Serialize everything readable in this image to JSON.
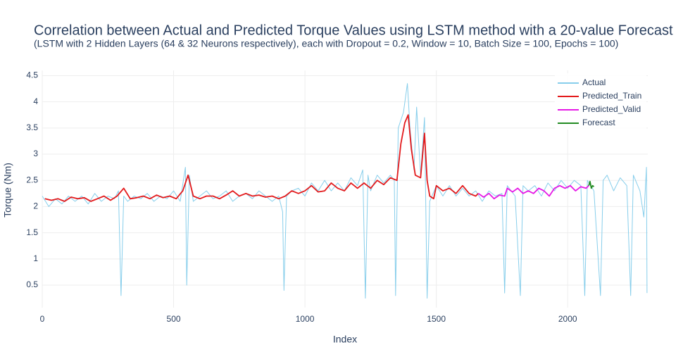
{
  "chart_data": {
    "type": "line",
    "title": "Correlation between Actual and Predicted Torque Values using LSTM method with a 20-value Forecast",
    "subtitle": "(LSTM with 2 Hidden Layers (64 & 32 Neurons respectively), each with Dropout = 0.2, Window = 10, Batch Size = 100, Epochs = 100)",
    "x_label": "Index",
    "y_label": "Torque (Nm)",
    "xlim": [
      0,
      2305
    ],
    "ylim": [
      0.07,
      4.6
    ],
    "xticks": [
      0,
      500,
      1000,
      1500,
      2000
    ],
    "yticks": [
      0.5,
      1,
      1.5,
      2,
      2.5,
      3,
      3.5,
      4,
      4.5
    ],
    "grid": true,
    "legend": "top-right",
    "series": [
      {
        "name": "Actual",
        "color": "#87ceeb",
        "x": [
          0,
          25,
          50,
          75,
          100,
          125,
          150,
          175,
          200,
          225,
          250,
          275,
          290,
          300,
          310,
          325,
          350,
          375,
          400,
          425,
          450,
          475,
          500,
          525,
          545,
          550,
          560,
          575,
          600,
          625,
          650,
          675,
          700,
          725,
          750,
          775,
          800,
          825,
          850,
          875,
          900,
          915,
          920,
          930,
          950,
          975,
          1000,
          1025,
          1050,
          1075,
          1100,
          1125,
          1150,
          1175,
          1200,
          1220,
          1230,
          1240,
          1250,
          1275,
          1300,
          1325,
          1340,
          1345,
          1355,
          1375,
          1390,
          1400,
          1415,
          1425,
          1440,
          1455,
          1465,
          1475,
          1500,
          1525,
          1550,
          1575,
          1600,
          1625,
          1650,
          1675,
          1700,
          1725,
          1750,
          1760,
          1770,
          1800,
          1820,
          1830,
          1850,
          1875,
          1900,
          1925,
          1950,
          1975,
          2000,
          2025,
          2050,
          2065,
          2075,
          2100,
          2125,
          2135,
          2150,
          2175,
          2200,
          2225,
          2240,
          2250,
          2275,
          2290,
          2300,
          2302
        ],
        "values": [
          2.2,
          2.0,
          2.15,
          2.05,
          2.2,
          2.1,
          2.2,
          2.05,
          2.25,
          2.1,
          2.2,
          2.15,
          2.3,
          0.3,
          2.2,
          2.1,
          2.2,
          2.15,
          2.25,
          2.1,
          2.2,
          2.15,
          2.3,
          2.1,
          2.75,
          0.5,
          2.6,
          2.1,
          2.2,
          2.3,
          2.15,
          2.2,
          2.3,
          2.1,
          2.2,
          2.25,
          2.15,
          2.3,
          2.2,
          2.1,
          2.2,
          1.9,
          0.4,
          2.2,
          2.3,
          2.35,
          2.2,
          2.45,
          2.3,
          2.5,
          2.3,
          2.45,
          2.3,
          2.55,
          2.4,
          2.7,
          0.25,
          2.6,
          2.3,
          2.6,
          2.45,
          2.6,
          2.5,
          0.3,
          3.5,
          3.8,
          4.35,
          3.5,
          2.7,
          3.9,
          2.6,
          3.7,
          0.25,
          2.1,
          2.4,
          2.2,
          2.4,
          2.2,
          2.35,
          2.2,
          2.3,
          2.1,
          2.3,
          2.2,
          2.25,
          0.35,
          2.4,
          2.2,
          0.3,
          2.4,
          2.3,
          2.4,
          2.2,
          2.45,
          2.3,
          2.5,
          2.35,
          2.5,
          2.4,
          0.3,
          2.5,
          2.3,
          0.3,
          2.5,
          2.6,
          2.3,
          2.55,
          2.4,
          0.3,
          2.6,
          2.3,
          1.8,
          2.75,
          0.35
        ]
      },
      {
        "name": "Predicted_Train",
        "color": "#e31a1c",
        "x": [
          10,
          35,
          60,
          85,
          110,
          135,
          160,
          185,
          210,
          235,
          260,
          285,
          310,
          335,
          360,
          385,
          410,
          435,
          460,
          485,
          510,
          535,
          555,
          575,
          600,
          625,
          650,
          675,
          700,
          725,
          750,
          775,
          800,
          825,
          850,
          875,
          900,
          925,
          950,
          975,
          1000,
          1025,
          1050,
          1075,
          1100,
          1125,
          1150,
          1175,
          1200,
          1225,
          1250,
          1275,
          1300,
          1325,
          1350,
          1365,
          1380,
          1393,
          1405,
          1420,
          1440,
          1455,
          1465,
          1475,
          1490,
          1500,
          1525,
          1550,
          1575,
          1600,
          1625,
          1650,
          1660
        ],
        "values": [
          2.15,
          2.12,
          2.15,
          2.1,
          2.18,
          2.15,
          2.17,
          2.1,
          2.15,
          2.2,
          2.12,
          2.2,
          2.35,
          2.15,
          2.17,
          2.2,
          2.15,
          2.22,
          2.17,
          2.2,
          2.15,
          2.3,
          2.6,
          2.2,
          2.15,
          2.2,
          2.2,
          2.15,
          2.22,
          2.3,
          2.2,
          2.25,
          2.2,
          2.22,
          2.18,
          2.2,
          2.15,
          2.2,
          2.3,
          2.25,
          2.3,
          2.4,
          2.28,
          2.3,
          2.45,
          2.35,
          2.3,
          2.45,
          2.35,
          2.45,
          2.35,
          2.5,
          2.42,
          2.55,
          2.5,
          3.2,
          3.6,
          3.75,
          3.1,
          2.6,
          2.55,
          3.4,
          2.5,
          2.2,
          2.15,
          2.4,
          2.3,
          2.35,
          2.25,
          2.4,
          2.25,
          2.2,
          2.25
        ]
      },
      {
        "name": "Predicted_Valid",
        "color": "#e619e6",
        "x": [
          1660,
          1680,
          1700,
          1720,
          1740,
          1760,
          1770,
          1790,
          1810,
          1830,
          1850,
          1870,
          1890,
          1910,
          1930,
          1950,
          1970,
          1990,
          2010,
          2030,
          2050,
          2070,
          2080
        ],
        "values": [
          2.25,
          2.18,
          2.25,
          2.15,
          2.22,
          2.2,
          2.35,
          2.28,
          2.35,
          2.25,
          2.3,
          2.25,
          2.35,
          2.3,
          2.2,
          2.35,
          2.4,
          2.35,
          2.4,
          2.3,
          2.38,
          2.35,
          2.4
        ]
      },
      {
        "name": "Forecast",
        "color": "#228b22",
        "x": [
          2080,
          2085,
          2090,
          2095,
          2100
        ],
        "values": [
          2.4,
          2.48,
          2.35,
          2.4,
          2.38
        ]
      }
    ]
  }
}
